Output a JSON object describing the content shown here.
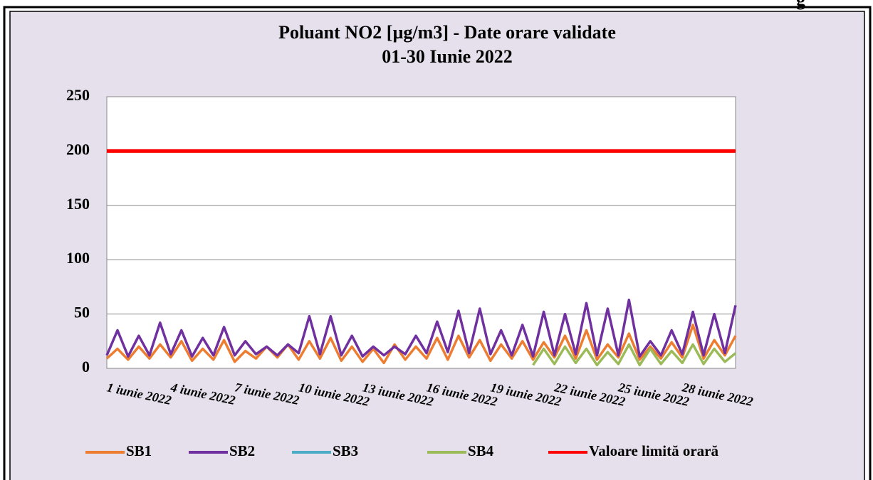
{
  "corner_text": "g",
  "chart_data": {
    "type": "line",
    "title": "Poluant NO2 [µg/m3] - Date orare validate",
    "subtitle": "01-30 Iunie 2022",
    "categories": [
      "1 iunie 2022",
      null,
      null,
      null,
      null,
      null,
      "4 iunie 2022",
      null,
      null,
      null,
      null,
      null,
      "7 iunie 2022",
      null,
      null,
      null,
      null,
      null,
      "10 iunie 2022",
      null,
      null,
      null,
      null,
      null,
      "13 iunie 2022",
      null,
      null,
      null,
      null,
      null,
      "16 iunie 2022",
      null,
      null,
      null,
      null,
      null,
      "19 iunie 2022",
      null,
      null,
      null,
      null,
      null,
      "22 iunie 2022",
      null,
      null,
      null,
      null,
      null,
      "25 iunie 2022",
      null,
      null,
      null,
      null,
      null,
      "28 iunie 2022",
      null,
      null,
      null,
      null,
      null
    ],
    "series": [
      {
        "name": "SB1",
        "color": "#ed7d31",
        "values": [
          9,
          18,
          8,
          20,
          9,
          22,
          10,
          25,
          7,
          18,
          8,
          26,
          6,
          16,
          9,
          20,
          10,
          22,
          8,
          25,
          9,
          28,
          7,
          20,
          6,
          18,
          5,
          22,
          8,
          20,
          9,
          28,
          8,
          30,
          10,
          26,
          7,
          22,
          9,
          25,
          8,
          24,
          10,
          30,
          9,
          35,
          8,
          22,
          10,
          32,
          8,
          20,
          9,
          24,
          10,
          40,
          9,
          26,
          12,
          30
        ]
      },
      {
        "name": "SB2",
        "color": "#7030a0",
        "values": [
          12,
          35,
          11,
          30,
          12,
          42,
          13,
          35,
          11,
          28,
          12,
          38,
          12,
          25,
          13,
          20,
          12,
          22,
          14,
          48,
          13,
          48,
          12,
          30,
          11,
          20,
          12,
          20,
          13,
          30,
          14,
          43,
          15,
          53,
          14,
          55,
          13,
          35,
          12,
          40,
          11,
          52,
          12,
          50,
          13,
          60,
          12,
          55,
          12,
          63,
          11,
          25,
          12,
          35,
          13,
          52,
          12,
          50,
          14,
          58
        ]
      },
      {
        "name": "SB3",
        "color": "#4bacc6",
        "values": [
          null,
          null,
          null,
          null,
          null,
          null,
          null,
          null,
          null,
          null,
          null,
          null,
          null,
          null,
          null,
          null,
          null,
          null,
          null,
          null,
          null,
          null,
          null,
          null,
          null,
          null,
          null,
          null,
          null,
          null,
          null,
          null,
          null,
          null,
          null,
          null,
          null,
          null,
          null,
          null,
          null,
          null,
          null,
          null,
          null,
          null,
          null,
          null,
          null,
          null,
          null,
          null,
          null,
          null,
          null,
          null,
          null,
          null,
          null,
          null
        ]
      },
      {
        "name": "SB4",
        "color": "#9bbb59",
        "values": [
          null,
          null,
          null,
          null,
          null,
          null,
          null,
          null,
          null,
          null,
          null,
          null,
          null,
          null,
          null,
          null,
          null,
          null,
          null,
          null,
          null,
          null,
          null,
          null,
          null,
          null,
          null,
          null,
          null,
          null,
          null,
          null,
          null,
          null,
          null,
          null,
          null,
          null,
          null,
          null,
          3,
          18,
          4,
          20,
          5,
          18,
          3,
          15,
          4,
          22,
          3,
          18,
          4,
          16,
          5,
          22,
          4,
          18,
          6,
          14
        ]
      },
      {
        "name": "Valoare limită orară",
        "color": "#ff0000",
        "values": [
          200,
          200,
          200,
          200,
          200,
          200,
          200,
          200,
          200,
          200,
          200,
          200,
          200,
          200,
          200,
          200,
          200,
          200,
          200,
          200,
          200,
          200,
          200,
          200,
          200,
          200,
          200,
          200,
          200,
          200,
          200,
          200,
          200,
          200,
          200,
          200,
          200,
          200,
          200,
          200,
          200,
          200,
          200,
          200,
          200,
          200,
          200,
          200,
          200,
          200,
          200,
          200,
          200,
          200,
          200,
          200,
          200,
          200,
          200,
          200
        ]
      }
    ],
    "ylim": [
      0,
      250
    ],
    "yticks": [
      0,
      50,
      100,
      150,
      200,
      250
    ],
    "grid": true
  }
}
